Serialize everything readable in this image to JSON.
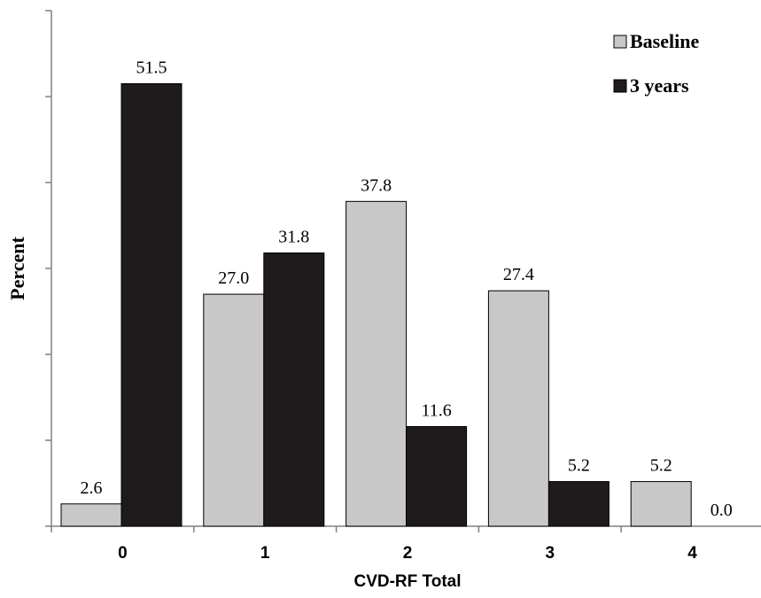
{
  "chart_data": {
    "type": "bar",
    "title": "",
    "xlabel": "CVD-RF Total",
    "ylabel": "Percent",
    "categories": [
      "0",
      "1",
      "2",
      "3",
      "4"
    ],
    "series": [
      {
        "name": "Baseline",
        "values": [
          2.6,
          27.0,
          37.8,
          27.4,
          5.2
        ],
        "value_labels": [
          "2.6",
          "27.0",
          "37.8",
          "27.4",
          "5.2"
        ],
        "color": "#c8c8c8"
      },
      {
        "name": "3 years",
        "values": [
          51.5,
          31.8,
          11.6,
          5.2,
          0.0
        ],
        "value_labels": [
          "51.5",
          "31.8",
          "11.6",
          "5.2",
          "0.0"
        ],
        "color": "#1f1a1c"
      }
    ],
    "ylim": [
      0,
      60
    ],
    "y_major_tick_step": 10,
    "y_tick_labels_shown": false,
    "grid": false,
    "legend": "top-right",
    "bar_outline_color": "#000000",
    "axis_color": "#808080"
  }
}
